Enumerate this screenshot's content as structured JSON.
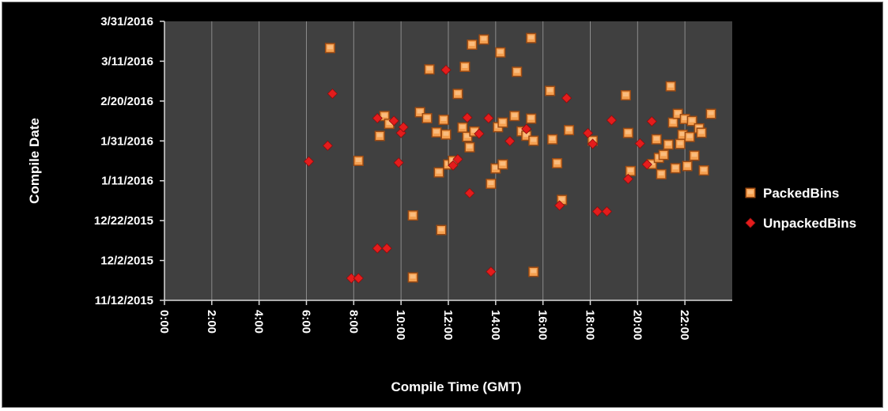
{
  "chart_data": {
    "type": "scatter",
    "xlabel": "Compile Time (GMT)",
    "ylabel": "Compile Date",
    "xlim": [
      0,
      24
    ],
    "x_ticks": [
      "0:00",
      "2:00",
      "4:00",
      "6:00",
      "8:00",
      "10:00",
      "12:00",
      "14:00",
      "16:00",
      "18:00",
      "20:00",
      "22:00"
    ],
    "y_ticks": [
      "11/12/2015",
      "12/2/2015",
      "12/22/2015",
      "1/11/2016",
      "1/31/2016",
      "2/20/2016",
      "3/11/2016",
      "3/31/2016"
    ],
    "ylim_days": [
      0,
      140
    ],
    "grid": "vertical",
    "legend_position": "right",
    "plot_background": "#404040",
    "series": [
      {
        "name": "PackedBins",
        "marker": "square",
        "color": "#f5a050",
        "points": [
          [
            7.0,
            126.6
          ],
          [
            8.2,
            70.0
          ],
          [
            9.1,
            82.5
          ],
          [
            9.3,
            92.5
          ],
          [
            9.5,
            88.6
          ],
          [
            10.5,
            42.6
          ],
          [
            10.5,
            11.5
          ],
          [
            10.8,
            94.4
          ],
          [
            11.1,
            91.4
          ],
          [
            11.2,
            115.9
          ],
          [
            11.5,
            84.3
          ],
          [
            11.6,
            64.2
          ],
          [
            11.7,
            35.3
          ],
          [
            11.8,
            90.6
          ],
          [
            11.9,
            83.2
          ],
          [
            12.0,
            68.2
          ],
          [
            12.2,
            70.0
          ],
          [
            12.4,
            103.6
          ],
          [
            12.6,
            86.7
          ],
          [
            12.7,
            117.2
          ],
          [
            12.8,
            82.1
          ],
          [
            12.9,
            76.8
          ],
          [
            13.0,
            128.3
          ],
          [
            13.1,
            84.7
          ],
          [
            13.5,
            130.9
          ],
          [
            13.8,
            58.5
          ],
          [
            14.0,
            66.2
          ],
          [
            14.1,
            86.9
          ],
          [
            14.2,
            124.4
          ],
          [
            14.3,
            68.2
          ],
          [
            14.3,
            89.2
          ],
          [
            14.8,
            92.5
          ],
          [
            14.9,
            114.7
          ],
          [
            15.1,
            84.8
          ],
          [
            15.3,
            82.6
          ],
          [
            15.5,
            131.6
          ],
          [
            15.5,
            91.2
          ],
          [
            15.6,
            80.1
          ],
          [
            15.6,
            14.3
          ],
          [
            16.3,
            105.1
          ],
          [
            16.4,
            80.8
          ],
          [
            16.6,
            68.8
          ],
          [
            16.8,
            50.4
          ],
          [
            17.1,
            85.4
          ],
          [
            18.1,
            80.1
          ],
          [
            19.5,
            102.9
          ],
          [
            19.6,
            84.0
          ],
          [
            19.7,
            64.9
          ],
          [
            20.6,
            68.4
          ],
          [
            20.8,
            80.8
          ],
          [
            20.9,
            71.5
          ],
          [
            21.0,
            63.3
          ],
          [
            21.1,
            73.0
          ],
          [
            21.3,
            78.2
          ],
          [
            21.4,
            107.4
          ],
          [
            21.5,
            89.2
          ],
          [
            21.6,
            66.3
          ],
          [
            21.7,
            93.6
          ],
          [
            21.8,
            78.5
          ],
          [
            21.9,
            83.1
          ],
          [
            22.0,
            91.0
          ],
          [
            22.1,
            67.4
          ],
          [
            22.2,
            82.0
          ],
          [
            22.3,
            90.0
          ],
          [
            22.4,
            72.6
          ],
          [
            22.6,
            86.3
          ],
          [
            22.7,
            84.1
          ],
          [
            22.8,
            65.2
          ],
          [
            23.1,
            93.6
          ]
        ]
      },
      {
        "name": "UnpackedBins",
        "marker": "diamond",
        "color": "#e41c1c",
        "points": [
          [
            6.1,
            69.7
          ],
          [
            6.9,
            77.6
          ],
          [
            7.1,
            103.7
          ],
          [
            7.9,
            11.1
          ],
          [
            8.2,
            11.1
          ],
          [
            9.0,
            91.4
          ],
          [
            9.0,
            26.1
          ],
          [
            9.4,
            26.1
          ],
          [
            9.7,
            90.1
          ],
          [
            9.9,
            69.1
          ],
          [
            10.0,
            84.0
          ],
          [
            10.1,
            86.9
          ],
          [
            11.9,
            115.6
          ],
          [
            12.2,
            67.7
          ],
          [
            12.4,
            70.8
          ],
          [
            12.8,
            91.7
          ],
          [
            12.9,
            53.8
          ],
          [
            13.3,
            83.6
          ],
          [
            13.7,
            91.4
          ],
          [
            13.8,
            14.4
          ],
          [
            14.6,
            79.9
          ],
          [
            15.3,
            86.0
          ],
          [
            16.7,
            47.6
          ],
          [
            17.0,
            101.5
          ],
          [
            17.9,
            83.9
          ],
          [
            18.1,
            78.5
          ],
          [
            18.3,
            44.6
          ],
          [
            18.7,
            44.6
          ],
          [
            18.9,
            90.4
          ],
          [
            19.6,
            60.9
          ],
          [
            20.1,
            78.7
          ],
          [
            20.4,
            68.2
          ],
          [
            20.6,
            89.8
          ]
        ]
      }
    ]
  }
}
